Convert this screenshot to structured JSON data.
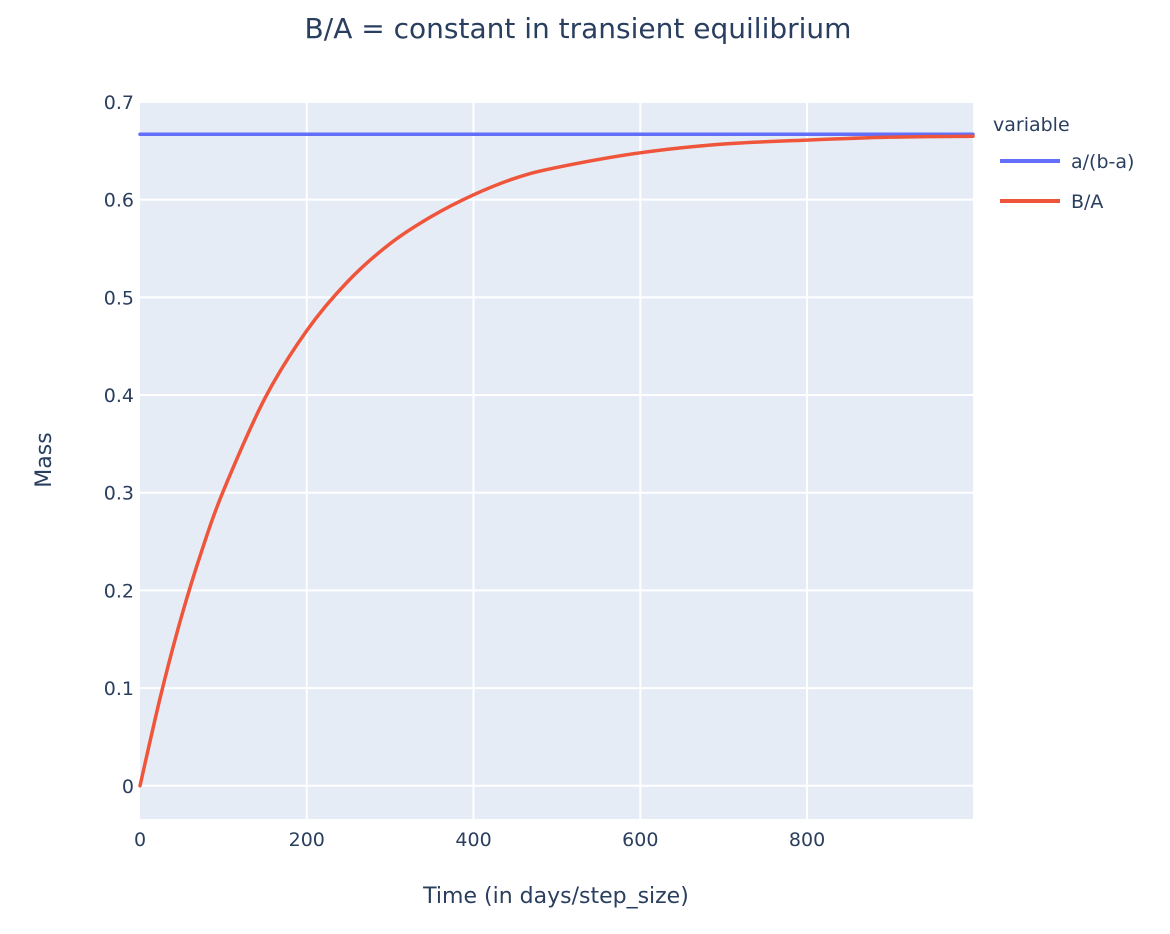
{
  "chart_data": {
    "type": "line",
    "title": "B/A = constant in transient equilibrium",
    "xlabel": "Time (in days/step_size)",
    "ylabel": "Mass",
    "xlim": [
      0,
      999
    ],
    "ylim": [
      -0.034,
      0.7
    ],
    "x_ticks": [
      0,
      200,
      400,
      600,
      800
    ],
    "x_tick_labels": [
      "0",
      "200",
      "400",
      "600",
      "800"
    ],
    "y_ticks": [
      0,
      0.1,
      0.2,
      0.3,
      0.4,
      0.5,
      0.6,
      0.7
    ],
    "y_tick_labels": [
      "0",
      "0.1",
      "0.2",
      "0.3",
      "0.4",
      "0.5",
      "0.6",
      "0.7"
    ],
    "grid": true,
    "plot_background": "#e5ecf6",
    "legend": {
      "title": "variable",
      "placement": "top-right outside"
    },
    "x": [
      0,
      25,
      50,
      75,
      100,
      150,
      200,
      250,
      300,
      350,
      400,
      450,
      500,
      600,
      700,
      800,
      900,
      999
    ],
    "series": [
      {
        "name": "a/(b-a)",
        "color": "#636efa",
        "values": [
          0.667,
          0.667,
          0.667,
          0.667,
          0.667,
          0.667,
          0.667,
          0.667,
          0.667,
          0.667,
          0.667,
          0.667,
          0.667,
          0.667,
          0.667,
          0.667,
          0.667,
          0.667
        ]
      },
      {
        "name": "B/A",
        "color": "#ef553b",
        "values": [
          0.0,
          0.093,
          0.174,
          0.243,
          0.302,
          0.397,
          0.466,
          0.517,
          0.555,
          0.583,
          0.605,
          0.622,
          0.633,
          0.648,
          0.657,
          0.661,
          0.664,
          0.665
        ]
      }
    ]
  }
}
